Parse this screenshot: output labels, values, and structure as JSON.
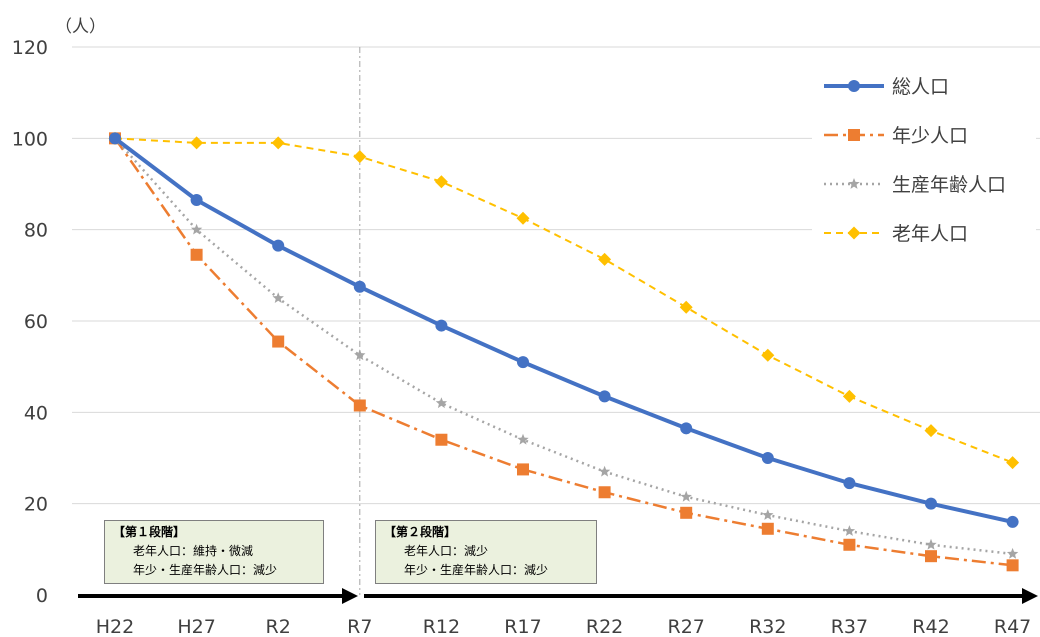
{
  "chart_data": {
    "type": "line",
    "title": "",
    "unit_label": "（人）",
    "xlabel": "",
    "ylabel": "",
    "ylim": [
      0,
      120
    ],
    "yticks": [
      0,
      20,
      40,
      60,
      80,
      100,
      120
    ],
    "grid": "horizontal",
    "legend_position": "top-right",
    "categories": [
      "H22",
      "H27",
      "R2",
      "R7",
      "R12",
      "R17",
      "R22",
      "R27",
      "R32",
      "R37",
      "R42",
      "R47"
    ],
    "series": [
      {
        "name": "総人口",
        "color": "#4472c4",
        "style": "solid",
        "marker": "circle",
        "values": [
          100,
          86.5,
          76.5,
          67.5,
          59,
          51,
          43.5,
          36.5,
          30,
          24.5,
          20,
          16
        ]
      },
      {
        "name": "年少人口",
        "color": "#ed7d31",
        "style": "dashdot",
        "marker": "square",
        "values": [
          100,
          74.5,
          55.5,
          41.5,
          34,
          27.5,
          22.5,
          18,
          14.5,
          11,
          8.5,
          6.5
        ]
      },
      {
        "name": "生産年齢人口",
        "color": "#a5a5a5",
        "style": "dotted",
        "marker": "star",
        "values": [
          100,
          80,
          65,
          52.5,
          42,
          34,
          27,
          21.5,
          17.5,
          14,
          11,
          9
        ]
      },
      {
        "name": "老年人口",
        "color": "#ffc000",
        "style": "dashed",
        "marker": "diamond",
        "values": [
          100,
          99,
          99,
          96,
          90.5,
          82.5,
          73.5,
          63,
          52.5,
          43.5,
          36,
          29
        ]
      }
    ],
    "divider_at": "R7",
    "stages": [
      {
        "title": "【第１段階】",
        "lines": [
          "老年人口：維持・微減",
          "年少・生産年齢人口：減少"
        ]
      },
      {
        "title": "【第２段階】",
        "lines": [
          "老年人口：減少",
          "年少・生産年齢人口：減少"
        ]
      }
    ]
  }
}
